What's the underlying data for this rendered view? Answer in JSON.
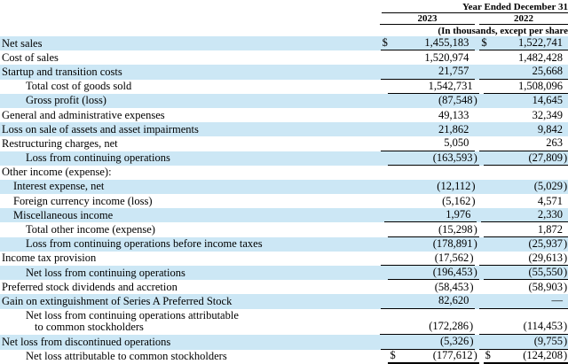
{
  "header": {
    "period_label": "Year Ended December 31",
    "col_2023": "2023",
    "col_2022": "2022",
    "units_note": "(In thousands, except per share"
  },
  "colors": {
    "row_highlight": "#cce7f5",
    "rule": "#000000"
  },
  "rows": [
    {
      "label": "Net sales",
      "d1": "$",
      "v1": "1,455,183",
      "p1": "",
      "d2": "$",
      "v2": "1,522,741",
      "p2": ""
    },
    {
      "label": "Cost of sales",
      "d1": "",
      "v1": "1,520,974",
      "p1": "",
      "d2": "",
      "v2": "1,482,428",
      "p2": ""
    },
    {
      "label": "Startup and transition costs",
      "d1": "",
      "v1": "21,757",
      "p1": "",
      "d2": "",
      "v2": "25,668",
      "p2": ""
    },
    {
      "label": "Total cost of goods sold",
      "d1": "",
      "v1": "1,542,731",
      "p1": "",
      "d2": "",
      "v2": "1,508,096",
      "p2": ""
    },
    {
      "label": "Gross profit (loss)",
      "d1": "",
      "v1": "(87,548",
      "p1": ")",
      "d2": "",
      "v2": "14,645",
      "p2": ""
    },
    {
      "label": "General and administrative expenses",
      "d1": "",
      "v1": "49,133",
      "p1": "",
      "d2": "",
      "v2": "32,349",
      "p2": ""
    },
    {
      "label": "Loss on sale of assets and asset impairments",
      "d1": "",
      "v1": "21,862",
      "p1": "",
      "d2": "",
      "v2": "9,842",
      "p2": ""
    },
    {
      "label": "Restructuring charges, net",
      "d1": "",
      "v1": "5,050",
      "p1": "",
      "d2": "",
      "v2": "263",
      "p2": ""
    },
    {
      "label": "Loss from continuing operations",
      "d1": "",
      "v1": "(163,593",
      "p1": ")",
      "d2": "",
      "v2": "(27,809",
      "p2": ")"
    },
    {
      "label": "Other income (expense):",
      "d1": "",
      "v1": "",
      "p1": "",
      "d2": "",
      "v2": "",
      "p2": ""
    },
    {
      "label": "Interest expense, net",
      "d1": "",
      "v1": "(12,112",
      "p1": ")",
      "d2": "",
      "v2": "(5,029",
      "p2": ")"
    },
    {
      "label": "Foreign currency income (loss)",
      "d1": "",
      "v1": "(5,162",
      "p1": ")",
      "d2": "",
      "v2": "4,571",
      "p2": ""
    },
    {
      "label": "Miscellaneous income",
      "d1": "",
      "v1": "1,976",
      "p1": "",
      "d2": "",
      "v2": "2,330",
      "p2": ""
    },
    {
      "label": "Total other income (expense)",
      "d1": "",
      "v1": "(15,298",
      "p1": ")",
      "d2": "",
      "v2": "1,872",
      "p2": ""
    },
    {
      "label": "Loss from continuing operations before income taxes",
      "d1": "",
      "v1": "(178,891",
      "p1": ")",
      "d2": "",
      "v2": "(25,937",
      "p2": ")"
    },
    {
      "label": "Income tax provision",
      "d1": "",
      "v1": "(17,562",
      "p1": ")",
      "d2": "",
      "v2": "(29,613",
      "p2": ")"
    },
    {
      "label": "Net loss from continuing operations",
      "d1": "",
      "v1": "(196,453",
      "p1": ")",
      "d2": "",
      "v2": "(55,550",
      "p2": ")"
    },
    {
      "label": "Preferred stock dividends and accretion",
      "d1": "",
      "v1": "(58,453",
      "p1": ")",
      "d2": "",
      "v2": "(58,903",
      "p2": ")"
    },
    {
      "label": "Gain on extinguishment of Series A Preferred Stock",
      "d1": "",
      "v1": "82,620",
      "p1": "",
      "d2": "",
      "v2": "—",
      "p2": ""
    },
    {
      "label": "Net loss from continuing operations attributable",
      "label2": "to common stockholders",
      "d1": "",
      "v1": "(172,286",
      "p1": ")",
      "d2": "",
      "v2": "(114,453",
      "p2": ")"
    },
    {
      "label": "Net loss from discontinued operations",
      "d1": "",
      "v1": "(5,326",
      "p1": ")",
      "d2": "",
      "v2": "(9,755",
      "p2": ")"
    },
    {
      "label": "Net loss attributable to common stockholders",
      "d1": "$",
      "v1": "(177,612",
      "p1": ")",
      "d2": "$",
      "v2": "(124,208",
      "p2": ")"
    }
  ]
}
